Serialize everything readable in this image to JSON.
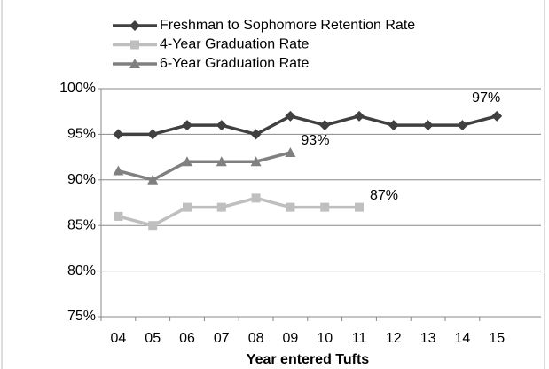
{
  "chart_data": {
    "type": "line",
    "categories": [
      "04",
      "05",
      "06",
      "07",
      "08",
      "09",
      "10",
      "11",
      "12",
      "13",
      "14",
      "15"
    ],
    "series": [
      {
        "name": "Freshman to Sophomore Retention Rate",
        "color": "#404040",
        "marker": "diamond",
        "values": [
          95,
          95,
          96,
          96,
          95,
          97,
          96,
          97,
          96,
          96,
          96,
          97
        ],
        "value_labels": [
          null,
          null,
          null,
          null,
          null,
          null,
          null,
          null,
          null,
          null,
          null,
          "97%"
        ]
      },
      {
        "name": "4-Year Graduation Rate",
        "color": "#bfbfbf",
        "marker": "square",
        "values": [
          86,
          85,
          87,
          87,
          88,
          87,
          87,
          87,
          null,
          null,
          null,
          null
        ],
        "value_labels": [
          null,
          null,
          null,
          null,
          null,
          null,
          null,
          "87%",
          null,
          null,
          null,
          null
        ]
      },
      {
        "name": "6-Year Graduation Rate",
        "color": "#808080",
        "marker": "triangle",
        "values": [
          91,
          90,
          92,
          92,
          92,
          93,
          null,
          null,
          null,
          null,
          null,
          null
        ],
        "value_labels": [
          null,
          null,
          null,
          null,
          null,
          "93%",
          null,
          null,
          null,
          null,
          null,
          null
        ]
      }
    ],
    "x_label": "Year entered Tufts",
    "ylim": [
      75,
      100
    ],
    "yticks": [
      {
        "value": 75,
        "label": "75%"
      },
      {
        "value": 80,
        "label": "80%"
      },
      {
        "value": 85,
        "label": "85%"
      },
      {
        "value": 90,
        "label": "90%"
      },
      {
        "value": 95,
        "label": "95%"
      },
      {
        "value": 100,
        "label": "100%"
      }
    ],
    "grid": true,
    "legend": "top-left"
  }
}
